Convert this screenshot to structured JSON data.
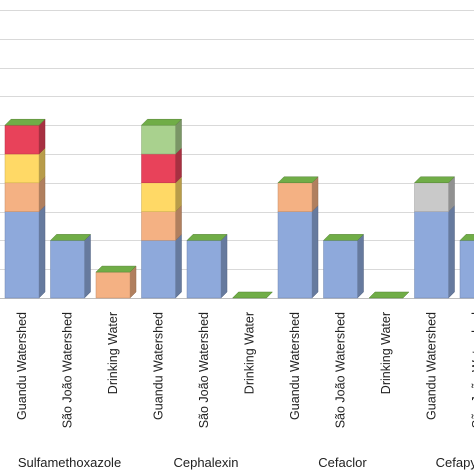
{
  "chart_data": {
    "type": "bar",
    "stacked": true,
    "style": "3d-columns",
    "grid": true,
    "legend": "none",
    "ylim": [
      0,
      10
    ],
    "categories": [
      "Guandu Watershed",
      "São João Watershed",
      "Drinking Water",
      "Guandu Watershed",
      "São João Watershed",
      "Drinking Water",
      "Guandu Watershed",
      "São João Watershed",
      "Drinking Water",
      "Guandu Watershed",
      "São João Watershed"
    ],
    "groups": [
      {
        "label": "Sulfamethoxazole",
        "categories": [
          0,
          1,
          2
        ]
      },
      {
        "label": "Cephalexin",
        "categories": [
          3,
          4,
          5
        ]
      },
      {
        "label": "Cefaclor",
        "categories": [
          6,
          7,
          8
        ]
      },
      {
        "label": "Cefapy",
        "categories": [
          9,
          10
        ]
      }
    ],
    "series": [
      {
        "color": "#8EA9DB",
        "values": [
          3.0,
          2.0,
          0,
          2.0,
          2.0,
          0,
          3.0,
          2.0,
          0,
          3.0,
          2.0
        ]
      },
      {
        "color": "#F4B183",
        "values": [
          1.0,
          0,
          0.9,
          1.0,
          0,
          0,
          1.0,
          0,
          0,
          0,
          0
        ]
      },
      {
        "color": "#FFD966",
        "values": [
          1.0,
          0,
          0,
          1.0,
          0,
          0,
          0,
          0,
          0,
          0,
          0
        ]
      },
      {
        "color": "#E8425A",
        "values": [
          1.0,
          0,
          0,
          1.0,
          0,
          0,
          0,
          0,
          0,
          0,
          0
        ]
      },
      {
        "color": "#A9D18E",
        "values": [
          0,
          0,
          0,
          1.0,
          0,
          0,
          0,
          0,
          0,
          0,
          0
        ]
      },
      {
        "color": "#C9C9C9",
        "values": [
          0,
          0,
          0,
          0,
          0,
          0,
          0,
          0,
          0,
          1.0,
          0
        ]
      }
    ],
    "top_cap_color": "#70AD47",
    "grid_color": "#D9D9D9"
  }
}
